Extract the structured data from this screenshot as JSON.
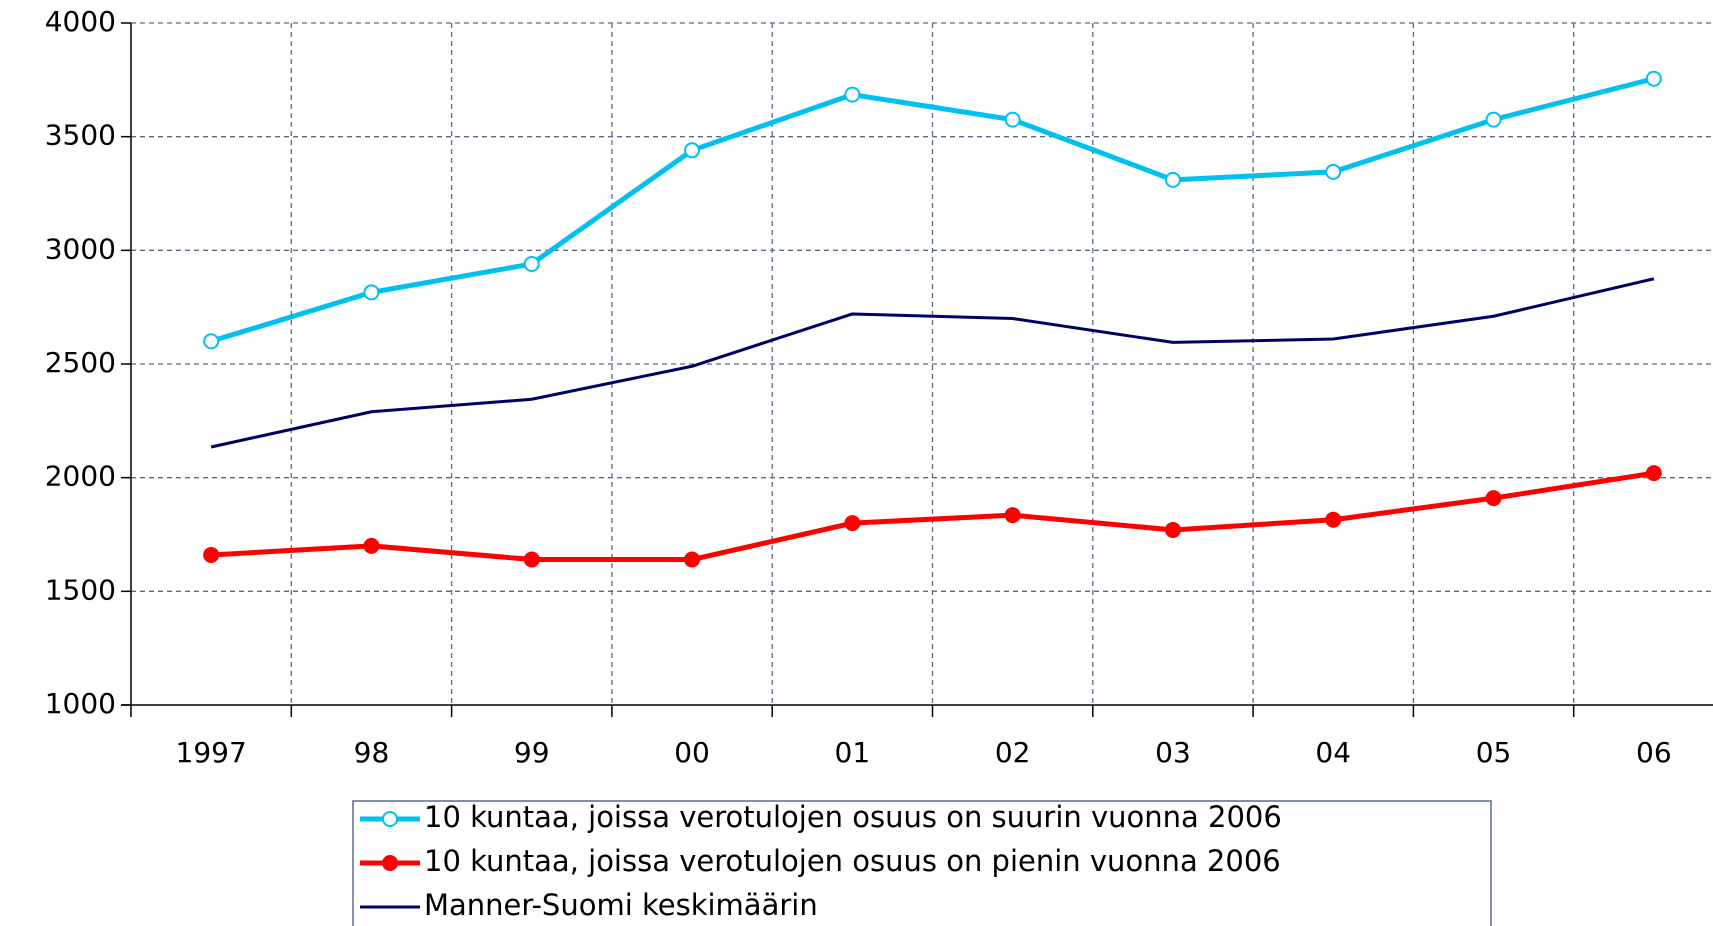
{
  "chart_data": {
    "type": "line",
    "categories": [
      "1997",
      "98",
      "99",
      "00",
      "01",
      "02",
      "03",
      "04",
      "05",
      "06"
    ],
    "series": [
      {
        "name": "10 kuntaa, joissa verotulojen osuus on suurin  vuonna 2006",
        "color": "#00c0f0",
        "marker": "open-circle",
        "values": [
          2600,
          2815,
          2940,
          3440,
          3685,
          3575,
          3310,
          3345,
          3575,
          3755
        ]
      },
      {
        "name": "10 kuntaa, joissa verotulojen osuus on pienin  vuonna 2006",
        "color": "#ff0000",
        "marker": "filled-circle",
        "values": [
          1660,
          1700,
          1640,
          1640,
          1800,
          1835,
          1770,
          1815,
          1910,
          2020
        ]
      },
      {
        "name": "Manner-Suomi keskimäärin",
        "color": "#000066",
        "marker": "none",
        "values": [
          2135,
          2290,
          2345,
          2490,
          2720,
          2700,
          2595,
          2610,
          2710,
          2875
        ]
      }
    ],
    "ylim": [
      1000,
      4000
    ],
    "yticks": [
      1000,
      1500,
      2000,
      2500,
      3000,
      3500,
      4000
    ],
    "grid": true
  }
}
